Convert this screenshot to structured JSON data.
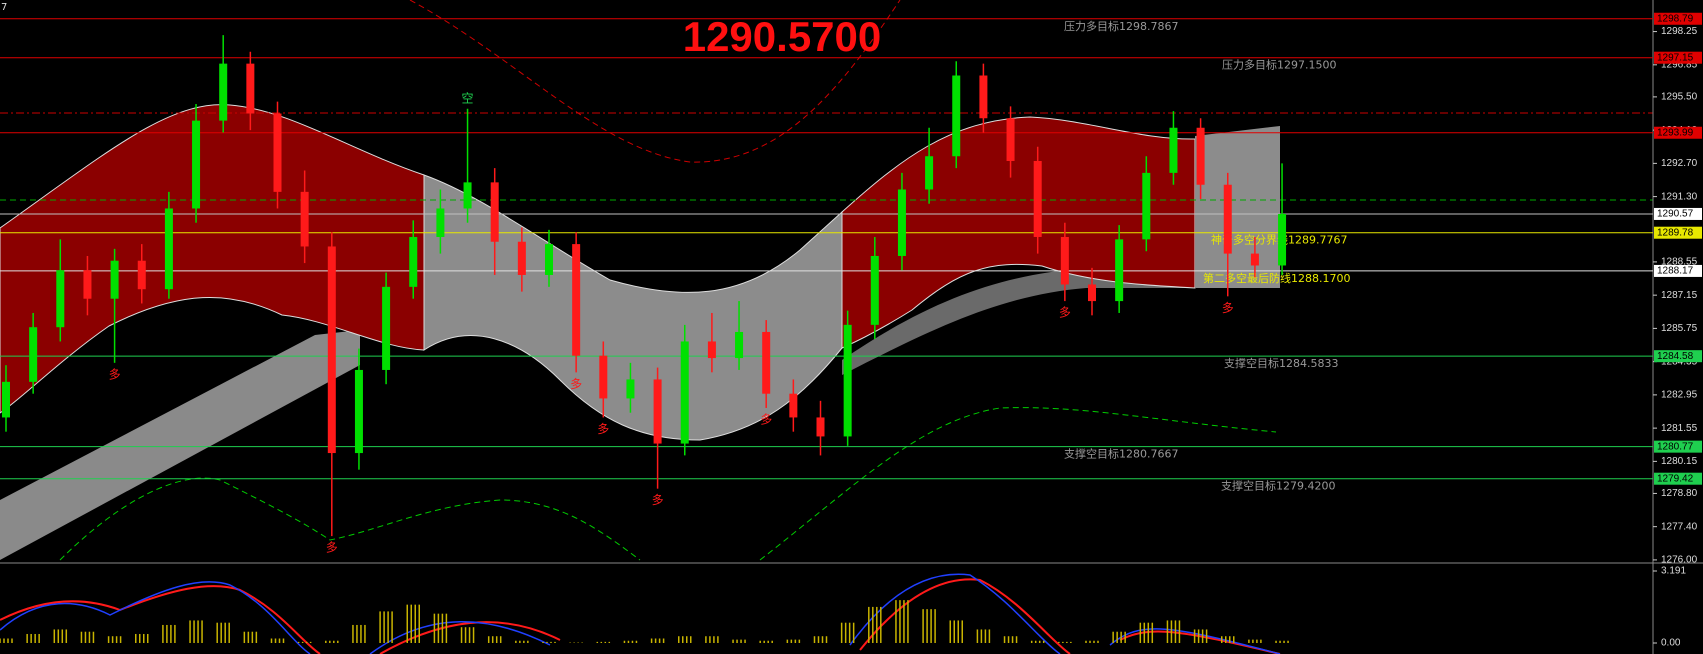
{
  "chart_data": {
    "type": "candlestick",
    "title": "1290.5700",
    "corner_label": "7",
    "ylim": [
      1275.87,
      1299.58
    ],
    "yticks": [
      1298.25,
      1296.85,
      {
        "value": 1295.5,
        "label": "1295.50"
      },
      {
        "value": 1294.1,
        "label": "1294.10"
      },
      {
        "value": 1292.7,
        "label": "1292.70"
      },
      {
        "value": 1291.3,
        "label": "1291.30"
      },
      1288.55,
      1287.15,
      1285.75,
      1284.35,
      1282.95,
      1281.55,
      1280.15,
      {
        "value": 1278.8,
        "label": "1278.80"
      },
      {
        "value": 1277.4,
        "label": "1277.40"
      },
      {
        "value": 1276,
        "label": "1276.00"
      }
    ],
    "candles": {
      "up_color": "#00e000",
      "down_color": "#ff1a1a",
      "open": [
        1282.0,
        1283.5,
        1285.8,
        1288.2,
        1287.0,
        1288.6,
        1287.4,
        1290.8,
        1294.5,
        1296.9,
        1294.8,
        1291.5,
        1289.2,
        1280.5,
        1284.0,
        1287.5,
        1289.6,
        1290.8,
        1291.9,
        1289.4,
        1288.0,
        1289.3,
        1284.6,
        1282.8,
        1283.6,
        1280.9,
        1285.2,
        1284.5,
        1285.6,
        1283.0,
        1282.0,
        1281.2,
        1285.9,
        1288.8,
        1291.6,
        1293.0,
        1296.4,
        1294.6,
        1292.8,
        1289.6,
        1287.6,
        1286.9,
        1289.5,
        1292.3,
        1294.2,
        1291.8,
        1288.9,
        1288.4
      ],
      "high": [
        1284.2,
        1286.4,
        1289.5,
        1288.8,
        1289.1,
        1289.3,
        1291.5,
        1295.2,
        1298.1,
        1297.4,
        1295.3,
        1292.4,
        1289.8,
        1284.9,
        1288.1,
        1290.3,
        1291.6,
        1295.0,
        1292.5,
        1290.0,
        1289.9,
        1289.8,
        1285.2,
        1284.3,
        1284.1,
        1285.9,
        1286.4,
        1286.9,
        1286.1,
        1283.6,
        1282.7,
        1286.5,
        1289.6,
        1292.3,
        1294.2,
        1297.0,
        1296.9,
        1295.1,
        1293.4,
        1290.2,
        1288.3,
        1290.1,
        1293.0,
        1294.9,
        1294.6,
        1292.3,
        1289.6,
        1292.7
      ],
      "low": [
        1281.4,
        1283.0,
        1285.2,
        1286.3,
        1284.3,
        1286.8,
        1287.0,
        1290.2,
        1294.0,
        1294.1,
        1290.8,
        1288.5,
        1277.0,
        1279.8,
        1283.4,
        1287.0,
        1288.9,
        1290.2,
        1288.0,
        1287.3,
        1287.5,
        1283.9,
        1282.0,
        1282.2,
        1279.0,
        1280.4,
        1283.9,
        1284.0,
        1282.4,
        1281.4,
        1280.4,
        1280.8,
        1285.3,
        1288.2,
        1291.0,
        1292.5,
        1294.0,
        1292.1,
        1288.9,
        1286.9,
        1286.3,
        1286.4,
        1289.0,
        1291.8,
        1291.2,
        1287.1,
        1287.9,
        1288.0
      ],
      "close": [
        1283.5,
        1285.8,
        1288.2,
        1287.0,
        1288.6,
        1287.4,
        1290.8,
        1294.5,
        1296.9,
        1294.8,
        1291.5,
        1289.2,
        1280.5,
        1284.0,
        1287.5,
        1289.6,
        1290.8,
        1291.9,
        1289.4,
        1288.0,
        1289.3,
        1284.6,
        1282.8,
        1283.6,
        1280.9,
        1285.2,
        1284.5,
        1285.6,
        1283.0,
        1282.0,
        1281.2,
        1285.9,
        1288.8,
        1291.6,
        1293.0,
        1296.4,
        1294.6,
        1292.8,
        1289.6,
        1287.6,
        1286.9,
        1289.5,
        1292.3,
        1294.2,
        1291.8,
        1288.9,
        1288.4,
        1290.57
      ]
    },
    "levels": [
      {
        "value": 1298.79,
        "color": "#e00000",
        "text": "压力多目标1298.7867"
      },
      {
        "value": 1297.15,
        "color": "#e00000",
        "text": "压力多目标1297.1500"
      },
      {
        "value": 1293.99,
        "color": "#e00000"
      },
      {
        "value": 1290.57,
        "color": "#c0c0c0"
      },
      {
        "value": 1289.78,
        "color": "#e8e800",
        "text": "神奇多空分界线1289.7767"
      },
      {
        "value": 1288.17,
        "color": "#e0e0e0",
        "text": "第二多空最后防线1288.1700"
      },
      {
        "value": 1284.58,
        "color": "#1fcf4f",
        "text": "支撑空目标1284.5833"
      },
      {
        "value": 1280.77,
        "color": "#1fcf4f",
        "text": "支撑空目标1280.7667"
      },
      {
        "value": 1279.42,
        "color": "#1fcf4f",
        "text": "支撑空目标1279.4200"
      }
    ],
    "signals": [
      {
        "at": 4,
        "text": "多"
      },
      {
        "at": 12,
        "text": "多"
      },
      {
        "at": 17,
        "text": "空"
      },
      {
        "at": 21,
        "text": "多"
      },
      {
        "at": 22,
        "text": "多"
      },
      {
        "at": 24,
        "text": "多"
      },
      {
        "at": 28,
        "text": "多"
      },
      {
        "at": 39,
        "text": "多"
      },
      {
        "at": 45,
        "text": "多"
      }
    ],
    "macd": {
      "ylim": [
        0,
        3.191
      ],
      "yticks": [
        {
          "value": 3.191,
          "label": "3.191"
        },
        {
          "value": 0,
          "label": "0.00"
        }
      ],
      "color": "#c8b400",
      "values": [
        0.2,
        0.4,
        0.6,
        0.5,
        0.3,
        0.4,
        0.8,
        1.0,
        0.9,
        0.5,
        0.2,
        0.05,
        0.1,
        0.8,
        1.4,
        1.7,
        1.3,
        0.7,
        0.3,
        0.1,
        0.05,
        0.02,
        0.05,
        0.1,
        0.2,
        0.3,
        0.3,
        0.15,
        0.1,
        0.15,
        0.3,
        0.9,
        1.6,
        1.9,
        1.5,
        1.0,
        0.6,
        0.3,
        0.1,
        0.05,
        0.1,
        0.5,
        0.9,
        1.0,
        0.6,
        0.3,
        0.15,
        0.1
      ]
    }
  }
}
